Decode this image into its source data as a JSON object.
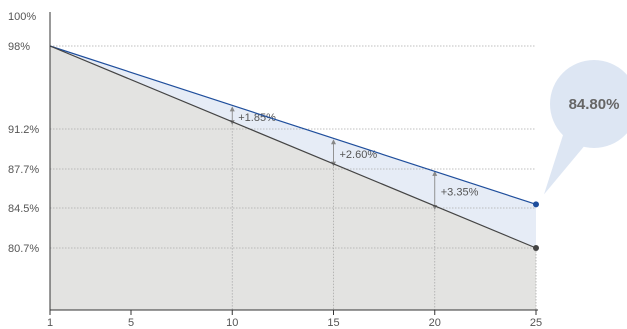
{
  "chart_data": {
    "type": "line",
    "title": "",
    "xlabel": "",
    "ylabel": "",
    "x_ticks": [
      "1",
      "5",
      "10",
      "15",
      "20",
      "25"
    ],
    "y_ticks": [
      {
        "value": 100,
        "label": "100%"
      },
      {
        "value": 98,
        "label": "98%"
      },
      {
        "value": 91.2,
        "label": "91.2%"
      },
      {
        "value": 87.7,
        "label": "87.7%"
      },
      {
        "value": 84.5,
        "label": "84.5%"
      },
      {
        "value": 80.7,
        "label": "80.7%"
      }
    ],
    "xlim": [
      1,
      25
    ],
    "series": [
      {
        "color": "#1f4e9c",
        "points": [
          [
            1,
            98
          ],
          [
            25,
            84.8
          ]
        ],
        "end_marker": true
      },
      {
        "color": "#444444",
        "points": [
          [
            1,
            98
          ],
          [
            25,
            80.7
          ]
        ],
        "end_marker": true
      }
    ],
    "annotations": [
      {
        "x": 10,
        "label": "+1.85%"
      },
      {
        "x": 15,
        "label": "+2.60%"
      },
      {
        "x": 20,
        "label": "+3.35%"
      }
    ],
    "callout": {
      "label": "84.80%",
      "x": 25
    },
    "colors": {
      "upper_fill": "#e6ecf6",
      "lower_fill": "#e3e3e1",
      "grid": "#aaaaaa",
      "axis": "#333333",
      "bubble": "#dde6f3"
    }
  }
}
